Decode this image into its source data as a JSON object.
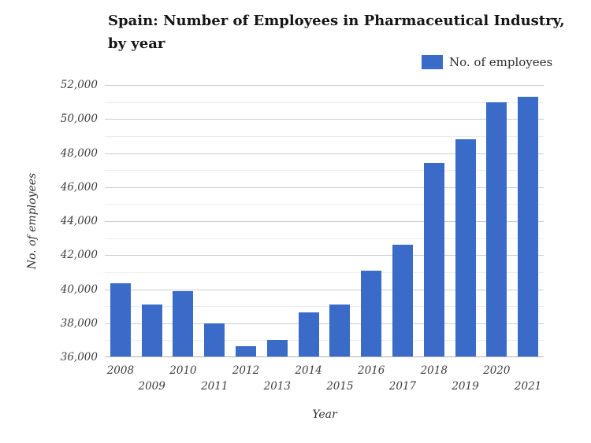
{
  "title": {
    "text": "Spain: Number of Employees in Pharmaceutical Industry,\nby year"
  },
  "legend": {
    "label": "No. of employees"
  },
  "colors": {
    "bar": "#3a6bc9",
    "grid_major": "#cccccc",
    "grid_minor": "#ececec",
    "baseline": "#b0b0b0",
    "title_text": "#161616",
    "tick_text": "#3d3d3d"
  },
  "chart_data": {
    "type": "bar",
    "title": "Spain: Number of Employees in Pharmaceutical Industry, by year",
    "categories": [
      "2008",
      "2009",
      "2010",
      "2011",
      "2012",
      "2013",
      "2014",
      "2015",
      "2016",
      "2017",
      "2018",
      "2019",
      "2020",
      "2021"
    ],
    "values": [
      40350,
      39100,
      39900,
      38000,
      36650,
      37000,
      38650,
      39100,
      41100,
      42600,
      47400,
      48800,
      51000,
      51300
    ],
    "series": [
      {
        "name": "No. of employees",
        "values": [
          40350,
          39100,
          39900,
          38000,
          36650,
          37000,
          38650,
          39100,
          41100,
          42600,
          47400,
          48800,
          51000,
          51300
        ]
      }
    ],
    "xlabel": "Year",
    "ylabel": "No. of employees",
    "ylim": [
      36000,
      52000
    ],
    "y_major_step": 2000,
    "y_minor_step": 1000,
    "y_tick_labels": [
      "36,000",
      "38,000",
      "40,000",
      "42,000",
      "44,000",
      "46,000",
      "48,000",
      "50,000",
      "52,000"
    ],
    "grid": true,
    "legend_position": "top-right",
    "x_label_layout": "staggered-two-rows"
  }
}
